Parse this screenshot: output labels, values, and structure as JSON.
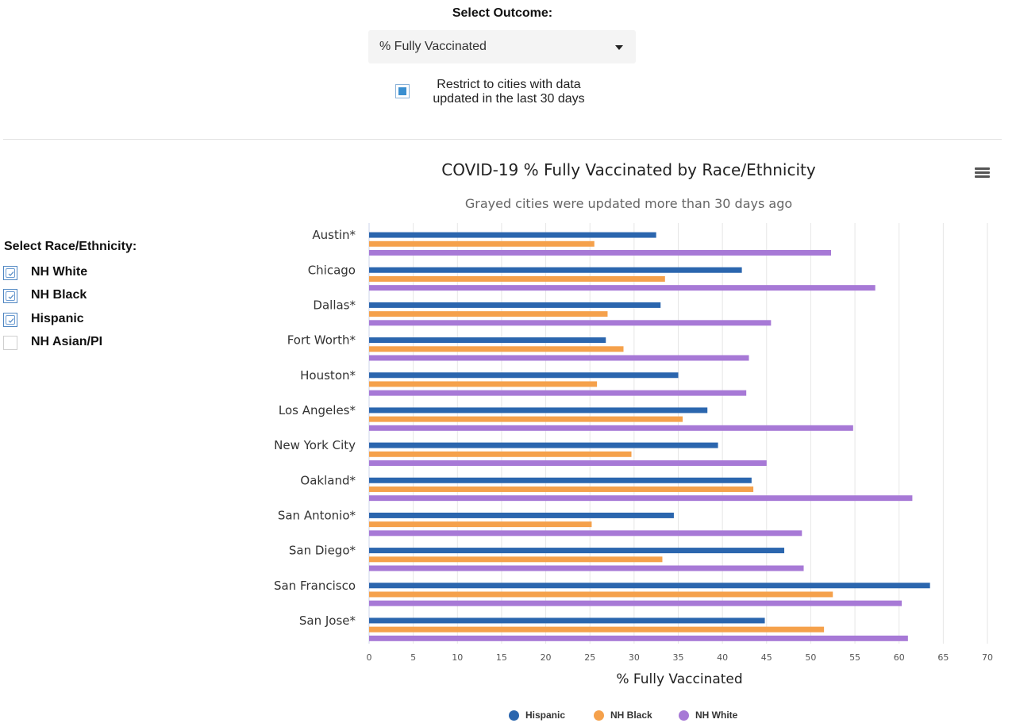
{
  "controls": {
    "outcome_label": "Select Outcome:",
    "outcome_value": "% Fully Vaccinated",
    "restrict_label": "Restrict to cities with data updated in the last 30 days",
    "restrict_checked": true,
    "race_title": "Select Race/Ethnicity:",
    "race_options": [
      {
        "label": "NH White",
        "checked": true
      },
      {
        "label": "NH Black",
        "checked": true
      },
      {
        "label": "Hispanic",
        "checked": true
      },
      {
        "label": "NH Asian/PI",
        "checked": false
      }
    ]
  },
  "icons": {
    "menu": "hamburger-menu-icon",
    "dropdown": "caret-down-icon"
  },
  "chart_data": {
    "type": "bar",
    "orientation": "horizontal",
    "title": "COVID-19 % Fully Vaccinated by Race/Ethnicity",
    "subtitle": "Grayed cities were updated more than 30 days ago",
    "xlabel": "% Fully Vaccinated",
    "ylabel": "",
    "xlim": [
      0,
      70
    ],
    "x_ticks": [
      0,
      5,
      10,
      15,
      20,
      25,
      30,
      35,
      40,
      45,
      50,
      55,
      60,
      65,
      70
    ],
    "grid": true,
    "legend_position": "bottom-center",
    "categories": [
      "Austin*",
      "Chicago",
      "Dallas*",
      "Fort Worth*",
      "Houston*",
      "Los Angeles*",
      "New York City",
      "Oakland*",
      "San Antonio*",
      "San Diego*",
      "San Francisco",
      "San Jose*"
    ],
    "series": [
      {
        "name": "Hispanic",
        "color": "#2b66ae",
        "values": [
          32.5,
          42.2,
          33.0,
          26.8,
          35.0,
          38.3,
          39.5,
          43.3,
          34.5,
          47.0,
          63.5,
          44.8
        ]
      },
      {
        "name": "NH Black",
        "color": "#f5a14b",
        "values": [
          25.5,
          33.5,
          27.0,
          28.8,
          25.8,
          35.5,
          29.7,
          43.5,
          25.2,
          33.2,
          52.5,
          51.5
        ]
      },
      {
        "name": "NH White",
        "color": "#a779d6",
        "values": [
          52.3,
          57.3,
          45.5,
          43.0,
          42.7,
          54.8,
          45.0,
          61.5,
          49.0,
          49.2,
          60.3,
          61.0
        ]
      }
    ]
  }
}
